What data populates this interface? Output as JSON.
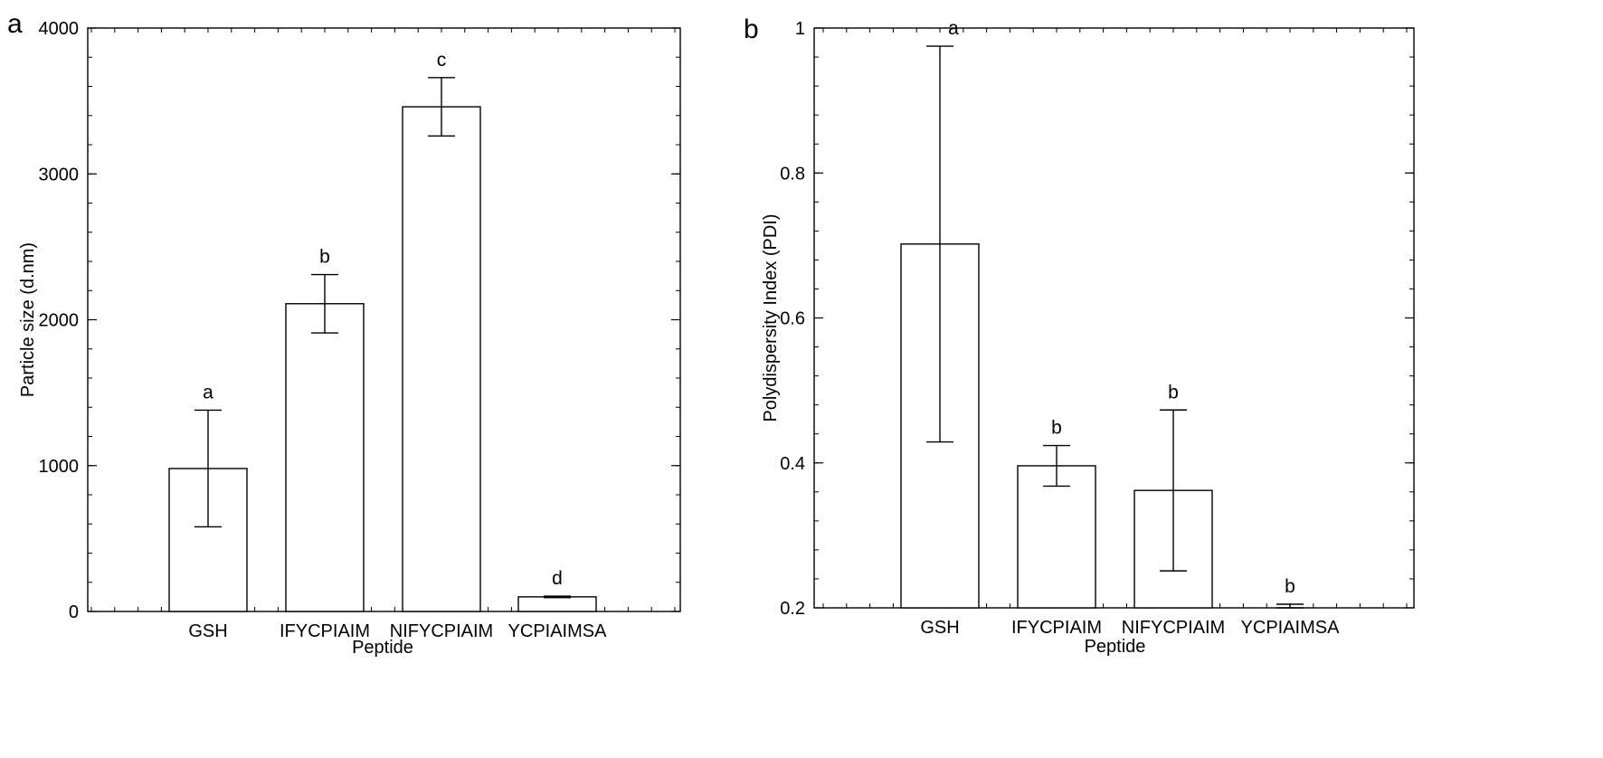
{
  "chart_data": [
    {
      "panel_label": "a",
      "type": "bar",
      "xlabel": "Peptide",
      "ylabel": "Particle size (d.nm)",
      "ylim": [
        0,
        4000
      ],
      "yticks": [
        0,
        1000,
        2000,
        3000,
        4000
      ],
      "yticks_minor_step": 200,
      "categories": [
        "GSH",
        "IFYCPIAIM",
        "NIFYCPIAIM",
        "YCPIAIMSA"
      ],
      "values": [
        980,
        2110,
        3460,
        100
      ],
      "error": [
        400,
        200,
        200,
        5
      ],
      "letters": [
        "a",
        "b",
        "c",
        "d"
      ],
      "bar_fill": "#ffffff",
      "bar_edge": "#000000",
      "grid": false
    },
    {
      "panel_label": "b",
      "type": "bar",
      "xlabel": "Peptide",
      "ylabel": "Polydispersity Index (PDI)",
      "ylim": [
        0.2,
        1.0
      ],
      "yticks": [
        0.2,
        0.4,
        0.6,
        0.8,
        1
      ],
      "ytick_labels": [
        "0.2",
        "0.4",
        "0.6",
        "0.8",
        "1"
      ],
      "yticks_minor_step": 0.04,
      "categories": [
        "GSH",
        "IFYCPIAIM",
        "NIFYCPIAIM",
        "YCPIAIMSA"
      ],
      "values": [
        0.702,
        0.396,
        0.362,
        0.2
      ],
      "error": [
        0.273,
        0.028,
        0.111,
        0.005
      ],
      "letters": [
        "a",
        "b",
        "b",
        "b"
      ],
      "bar_fill": "#ffffff",
      "bar_edge": "#000000",
      "grid": false
    }
  ]
}
